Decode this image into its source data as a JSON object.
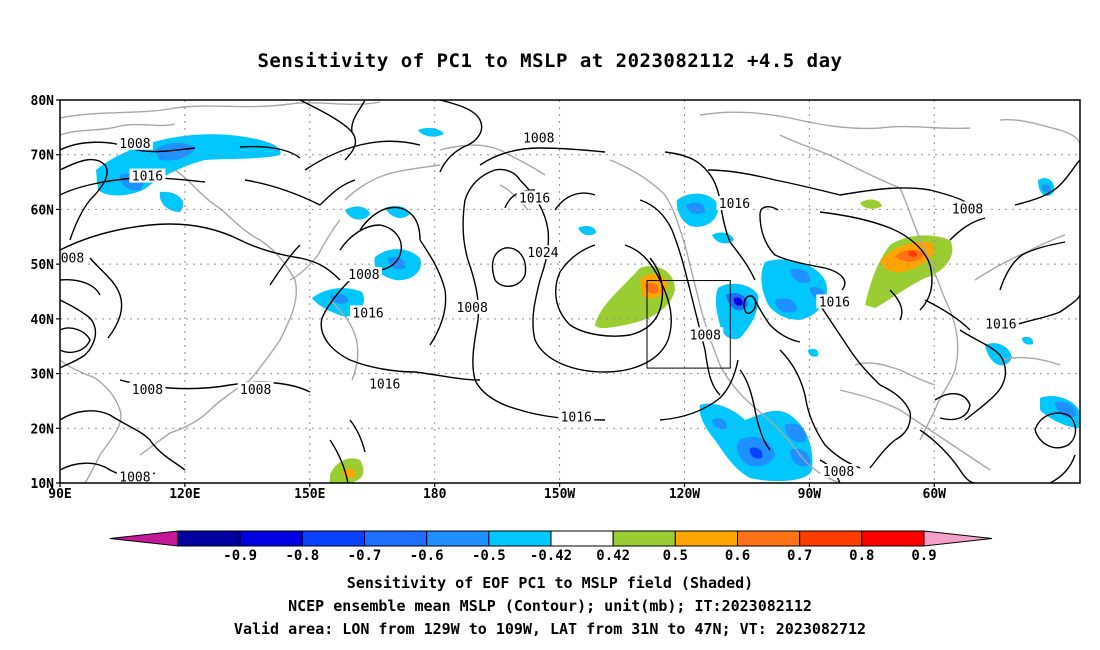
{
  "title": "Sensitivity of PC1 to MSLP at 2023082112 +4.5 day",
  "captions": {
    "line1": "Sensitivity of EOF PC1 to MSLP field (Shaded)",
    "line2": "NCEP ensemble mean MSLP (Contour); unit(mb); IT:2023082112",
    "line3": "Valid area: LON from 129W to 109W, LAT from 31N to 47N; VT: 2023082712"
  },
  "map": {
    "x_ticks": [
      "90E",
      "120E",
      "150E",
      "180",
      "150W",
      "120W",
      "90W",
      "60W"
    ],
    "y_ticks": [
      "10N",
      "20N",
      "30N",
      "40N",
      "50N",
      "60N",
      "70N",
      "80N"
    ],
    "x_range_lon": [
      90,
      335
    ],
    "y_range_lat": [
      10,
      80
    ],
    "valid_box": {
      "lon": [
        231,
        251
      ],
      "lat": [
        31,
        47
      ]
    },
    "contour_labels": [
      {
        "text": "1008",
        "lon": 108,
        "lat": 72
      },
      {
        "text": "1016",
        "lon": 111,
        "lat": 66
      },
      {
        "text": "008",
        "lon": 93,
        "lat": 51
      },
      {
        "text": "1008",
        "lon": 163,
        "lat": 48
      },
      {
        "text": "1016",
        "lon": 164,
        "lat": 41
      },
      {
        "text": "1008",
        "lon": 189,
        "lat": 42
      },
      {
        "text": "1008",
        "lon": 205,
        "lat": 73
      },
      {
        "text": "1016",
        "lon": 204,
        "lat": 62
      },
      {
        "text": "1024",
        "lon": 206,
        "lat": 52
      },
      {
        "text": "1016",
        "lon": 168,
        "lat": 28
      },
      {
        "text": "1008",
        "lon": 111,
        "lat": 27
      },
      {
        "text": "1008",
        "lon": 137,
        "lat": 27
      },
      {
        "text": "1016",
        "lon": 214,
        "lat": 22
      },
      {
        "text": "1008",
        "lon": 108,
        "lat": 11
      },
      {
        "text": "1016",
        "lon": 252,
        "lat": 61
      },
      {
        "text": "1008",
        "lon": 245,
        "lat": 37
      },
      {
        "text": "1016",
        "lon": 276,
        "lat": 43
      },
      {
        "text": "1008",
        "lon": 308,
        "lat": 60
      },
      {
        "text": "1016",
        "lon": 316,
        "lat": 39
      },
      {
        "text": "1008",
        "lon": 277,
        "lat": 12
      }
    ],
    "colors": {
      "pos_0.42": "#ffffff",
      "pos_0.5": "#9acd32",
      "pos_0.6": "#ffa500",
      "pos_0.7": "#ff7216",
      "pos_0.8": "#ff3c00",
      "pos_0.9": "#ff0000",
      "neg_0.5": "#00c8ff",
      "neg_0.6": "#1e90ff",
      "neg_0.7": "#0a55ff",
      "neg_0.8": "#0000e0",
      "neg_0.9": "#0000a0"
    }
  },
  "colorbar": {
    "labels": [
      "-0.9",
      "-0.8",
      "-0.7",
      "-0.6",
      "-0.5",
      "-0.42",
      "0.42",
      "0.5",
      "0.6",
      "0.7",
      "0.8",
      "0.9"
    ],
    "colors": [
      "#c41898",
      "#0000a0",
      "#0000e0",
      "#0a40ff",
      "#1e6eff",
      "#1e90ff",
      "#00c8ff",
      "#ffffff",
      "#9acd32",
      "#ffa500",
      "#ff7216",
      "#ff3c00",
      "#ff0000",
      "#f4a0c8"
    ]
  }
}
